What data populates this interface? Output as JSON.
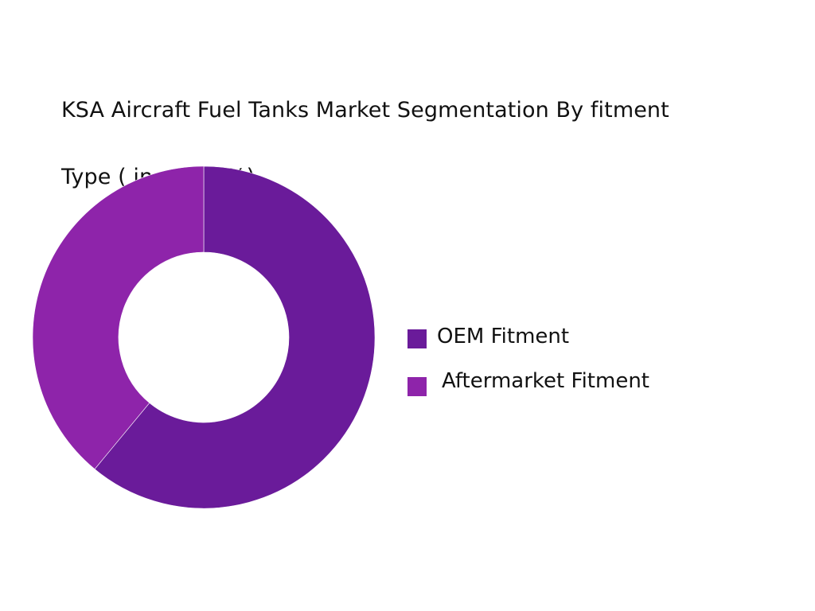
{
  "chart_data": {
    "type": "pie",
    "variant": "donut",
    "title": "KSA Aircraft Fuel Tanks Market  Segmentation By fitment Type ( in value %)",
    "title_lines": [
      "KSA Aircraft Fuel Tanks Market  Segmentation By fitment",
      "Type ( in value %)"
    ],
    "categories": [
      "OEM Fitment",
      "Aftermarket Fitment"
    ],
    "values": [
      61,
      39
    ],
    "unit": "%",
    "colors": [
      "#6A1B9A",
      "#8E24AA"
    ],
    "start_angle_deg": 0,
    "direction": "clockwise",
    "legend_position": "right",
    "data_labels_shown": false
  },
  "legend": {
    "items": [
      {
        "label": "OEM Fitment",
        "color": "#6A1B9A"
      },
      {
        "label": "Aftermarket Fitment",
        "color": "#8E24AA"
      }
    ]
  }
}
